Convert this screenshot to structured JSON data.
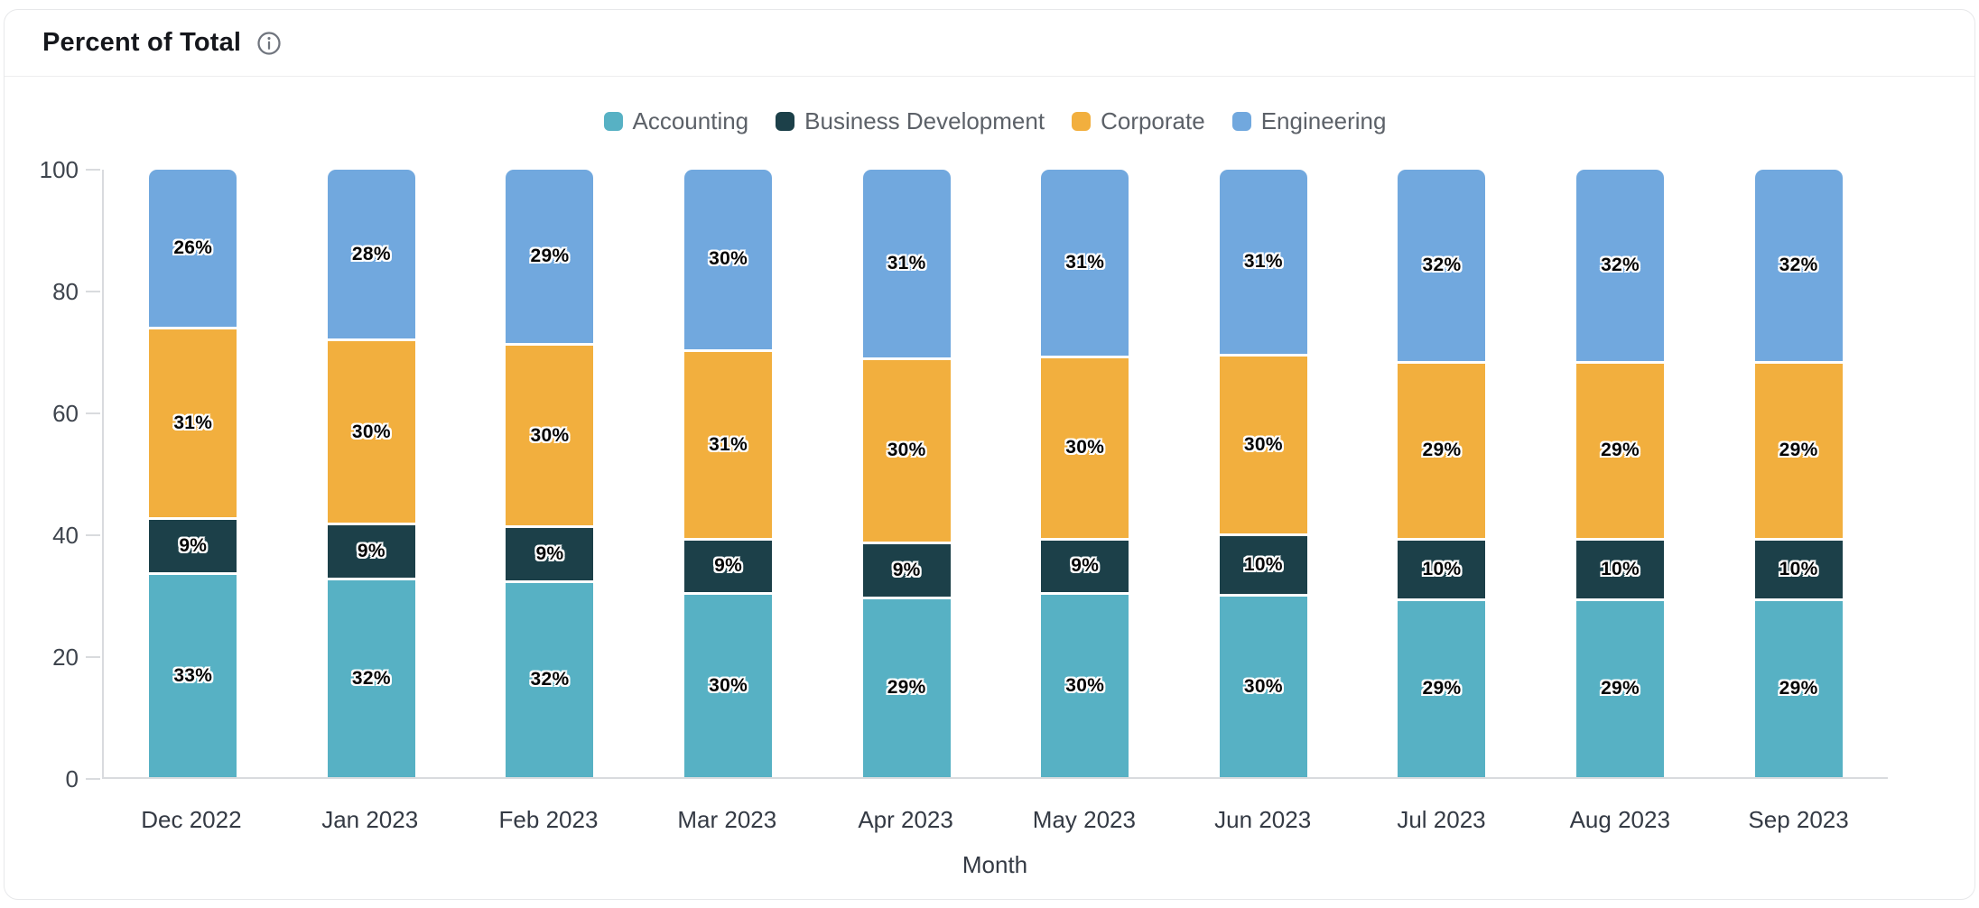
{
  "header": {
    "title": "Percent of Total"
  },
  "chart_data": {
    "type": "bar",
    "stacked": true,
    "stack_mode": "percent",
    "title": "Percent of Total",
    "xlabel": "Month",
    "ylabel": "",
    "ylim": [
      0,
      100
    ],
    "yticks": [
      0,
      20,
      40,
      60,
      80,
      100
    ],
    "grid": false,
    "legend_position": "top",
    "label_format": "percent",
    "categories": [
      "Dec 2022",
      "Jan 2023",
      "Feb 2023",
      "Mar 2023",
      "Apr 2023",
      "May 2023",
      "Jun 2023",
      "Jul 2023",
      "Aug 2023",
      "Sep 2023"
    ],
    "series": [
      {
        "name": "Accounting",
        "color": "#57B1C4",
        "values": [
          33,
          32,
          32,
          30,
          29,
          30,
          30,
          29,
          29,
          29
        ]
      },
      {
        "name": "Business Development",
        "color": "#1C4049",
        "values": [
          9,
          9,
          9,
          9,
          9,
          9,
          10,
          10,
          10,
          10
        ]
      },
      {
        "name": "Corporate",
        "color": "#F2AF3E",
        "values": [
          31,
          30,
          30,
          31,
          30,
          30,
          30,
          29,
          29,
          29
        ]
      },
      {
        "name": "Engineering",
        "color": "#71A8DE",
        "values": [
          26,
          28,
          29,
          30,
          31,
          31,
          31,
          32,
          32,
          32
        ]
      }
    ]
  },
  "colors": {
    "card_border": "#e7e8ea",
    "axis": "#d9dbde",
    "tick_text": "#3e444d",
    "legend_text": "#5c6168"
  }
}
